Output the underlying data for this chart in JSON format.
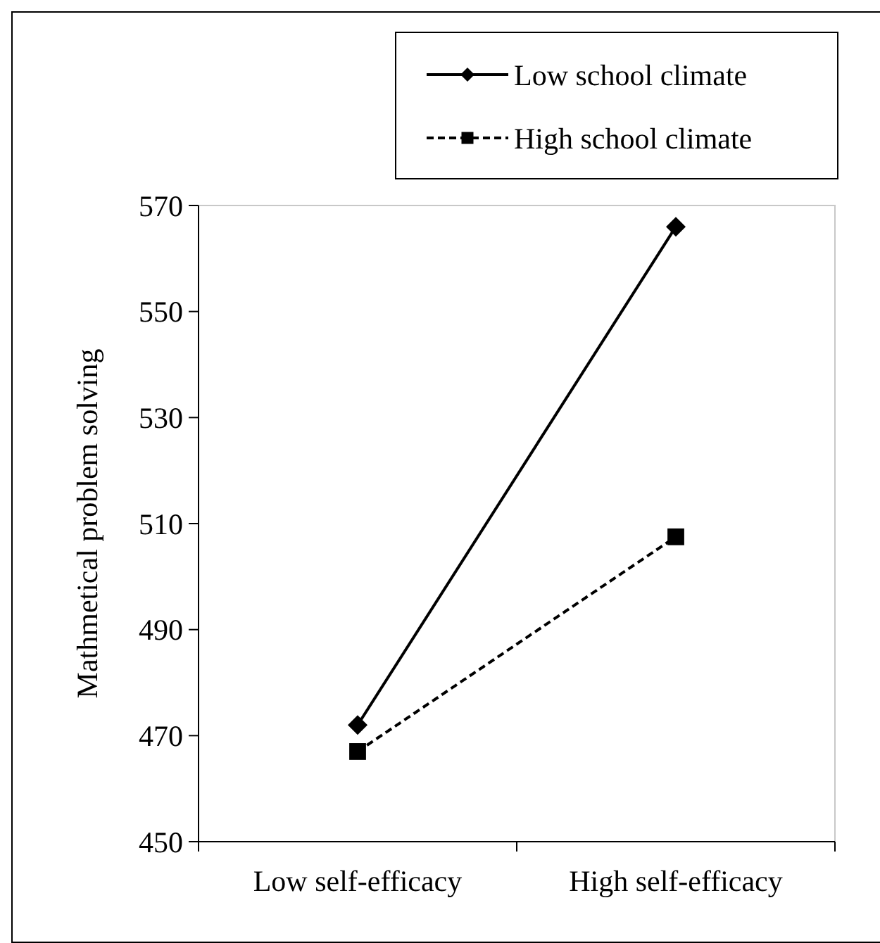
{
  "chart_data": {
    "type": "line",
    "ylabel": "Mathmetical problem solving",
    "categories": [
      "Low self-efficacy",
      "High self-efficacy"
    ],
    "series": [
      {
        "name": "Low school climate",
        "color": "#000000",
        "values": [
          472,
          566
        ],
        "marker": "diamond",
        "line_style": "solid"
      },
      {
        "name": "High school climate",
        "color": "#000000",
        "values": [
          467,
          507.5
        ],
        "marker": "square",
        "line_style": "dashed"
      }
    ],
    "ylim": [
      450,
      570
    ],
    "yticks": [
      450,
      470,
      490,
      510,
      530,
      550,
      570
    ],
    "grid": false,
    "legend": "top right"
  }
}
